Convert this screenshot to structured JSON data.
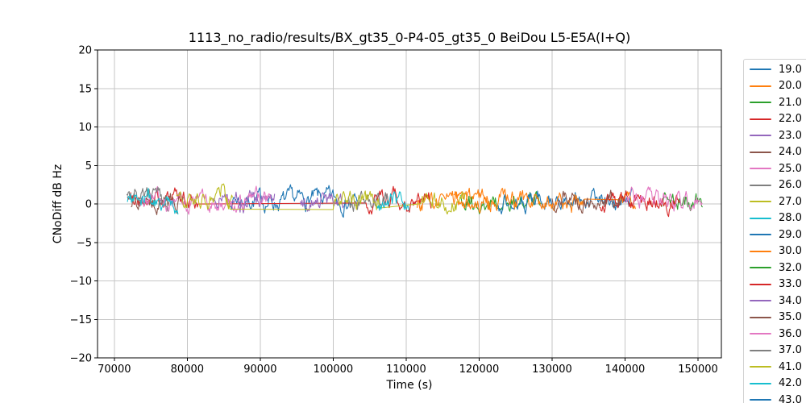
{
  "chart_data": {
    "type": "line",
    "title": "1113_no_radio/results/BX_gt35_0-P4-05_gt35_0 BeiDou L5-E5A(I+Q)",
    "xlabel": "Time (s)",
    "ylabel": "CNoDiff dB Hz",
    "xlim": [
      67700,
      153200
    ],
    "ylim": [
      -20,
      20
    ],
    "x_ticks": [
      70000,
      80000,
      90000,
      100000,
      110000,
      120000,
      130000,
      140000,
      150000
    ],
    "x_tick_labels": [
      "70000",
      "80000",
      "90000",
      "100000",
      "110000",
      "120000",
      "130000",
      "140000",
      "150000"
    ],
    "y_ticks": [
      20,
      15,
      10,
      5,
      0,
      -5,
      -10,
      -15,
      -20
    ],
    "y_tick_labels": [
      "20",
      "15",
      "10",
      "5",
      "0",
      "−5",
      "−10",
      "−15",
      "−20"
    ],
    "grid": true,
    "grid_color": "#c6c6c6",
    "spine_color": "#000000",
    "legend_position": "outside-right, clipped at figure bottom edge",
    "description": "Many per-satellite CN0-difference traces; each is noise of roughly ±1.5 dB-Hz centred near +0.4 dB-Hz, covering t ≈ 71700 s to 150700 s",
    "noise_model": {
      "mean_default": 0.4,
      "amp_default": 0.85,
      "ar_coeff": 0.74,
      "step_s": 110
    },
    "series": [
      {
        "name": "19.0",
        "color": "#1f77b4",
        "mean": 0.45,
        "segments": [
          [
            86000,
            103500
          ]
        ]
      },
      {
        "name": "20.0",
        "color": "#ff7f0e",
        "mean": 0.3,
        "segments": [
          [
            111500,
            121500
          ]
        ]
      },
      {
        "name": "21.0",
        "color": "#2ca02c",
        "mean": 0.4,
        "segments": [
          [
            117500,
            128500
          ]
        ]
      },
      {
        "name": "22.0",
        "color": "#d62728",
        "mean": 0.5,
        "segments": [
          [
            71800,
            81500
          ],
          [
            104500,
            113500
          ]
        ]
      },
      {
        "name": "23.0",
        "color": "#9467bd",
        "mean": 0.5,
        "segments": [
          [
            83500,
            92000
          ]
        ]
      },
      {
        "name": "24.0",
        "color": "#8c564b",
        "mean": 0.55,
        "segments": [
          [
            72300,
            79500
          ]
        ]
      },
      {
        "name": "25.0",
        "color": "#e377c2",
        "mean": 0.35,
        "segments": [
          [
            73500,
            91500
          ]
        ]
      },
      {
        "name": "26.0",
        "color": "#7f7f7f",
        "mean": 0.6,
        "segments": [
          [
            71700,
            77500
          ]
        ]
      },
      {
        "name": "27.0",
        "color": "#bcbd22",
        "mean": 0.6,
        "segments": [
          [
            78500,
            86200
          ]
        ],
        "bump": [
          84900,
          1.7,
          500
        ]
      },
      {
        "name": "28.0",
        "color": "#17becf",
        "mean": 0.2,
        "segments": [
          [
            71800,
            78800
          ]
        ]
      },
      {
        "name": "29.0",
        "color": "#1f77b4",
        "mean": 0.35,
        "segments": [
          [
            122500,
            141000
          ]
        ]
      },
      {
        "name": "30.0",
        "color": "#ff7f0e",
        "mean": 0.3,
        "segments": [
          [
            116500,
            134500
          ],
          [
            139000,
            141500
          ]
        ]
      },
      {
        "name": "32.0",
        "color": "#2ca02c",
        "mean": 0.3,
        "segments": [
          [
            145000,
            150700
          ]
        ]
      },
      {
        "name": "33.0",
        "color": "#d62728",
        "mean": 0.55,
        "segments": [
          [
            136500,
            147500
          ]
        ]
      },
      {
        "name": "34.0",
        "color": "#9467bd",
        "mean": 0.4,
        "segments": [
          [
            95500,
            101500
          ]
        ]
      },
      {
        "name": "35.0",
        "color": "#8c564b",
        "mean": 0.45,
        "segments": [
          [
            130000,
            139500
          ]
        ]
      },
      {
        "name": "36.0",
        "color": "#e377c2",
        "mean": 0.4,
        "segments": [
          [
            140000,
            150600
          ]
        ]
      },
      {
        "name": "37.0",
        "color": "#7f7f7f",
        "mean": 0.45,
        "segments": [
          [
            102000,
            107500
          ]
        ]
      },
      {
        "name": "41.0",
        "color": "#bcbd22",
        "mean": 0.5,
        "segments": [
          [
            85200,
            85900
          ],
          [
            100000,
            106500
          ],
          [
            112000,
            118200
          ]
        ]
      },
      {
        "name": "42.0",
        "color": "#17becf",
        "mean": 0.3,
        "segments": [
          [
            106000,
            110500
          ]
        ]
      },
      {
        "name": "43.0",
        "color": "#1f77b4",
        "mean": 0.4,
        "segments": []
      }
    ]
  }
}
